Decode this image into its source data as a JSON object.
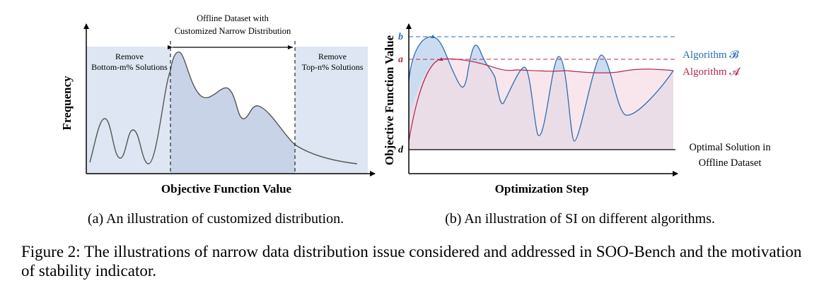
{
  "panel_a": {
    "center_label_line1": "Offline Dataset with",
    "center_label_line2": "Customized Narrow Distribution",
    "left_label_line1": "Remove",
    "left_label_line2": "Bottom-m% Solutions",
    "right_label_line1": "Remove",
    "right_label_line2": "Top-n% Solutions",
    "ylabel": "Frequency",
    "xlabel": "Objective Function Value",
    "caption": "(a) An illustration of customized distribution.",
    "colors": {
      "removed_region": "#dde6f2",
      "dataset_region": "#c9d3e8",
      "curve": "#555555"
    }
  },
  "panel_b": {
    "ylabel": "Objective Function Value",
    "xlabel": "Optimization Step",
    "tick_b": "b",
    "tick_a": "a",
    "tick_d": "d",
    "algo_b_label": "Algorithm 𝓑",
    "algo_a_label": "Algorithm 𝓐",
    "optimal_line1": "Optimal Solution in",
    "optimal_line2": "Offline Dataset",
    "caption": "(b) An illustration of SI on different algorithms.",
    "colors": {
      "algo_b": "#2a6db5",
      "algo_a": "#b5284f",
      "algo_b_fill": "#c7d8ee",
      "algo_a_fill": "#f5dde5",
      "overlap_fill": "#d8d3e6"
    }
  },
  "figure_caption": "Figure 2: The illustrations of narrow data distribution issue considered and addressed in SOO-Bench and the motivation of stability indicator."
}
